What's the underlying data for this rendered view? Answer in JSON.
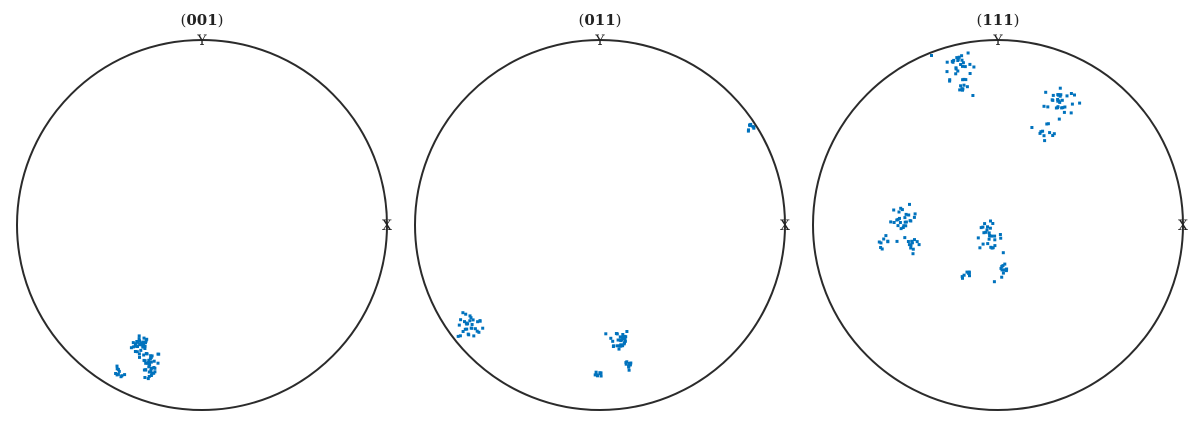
{
  "chart_data": [
    {
      "type": "scatter",
      "title_prefix": "(",
      "title_index": "001",
      "title_suffix": ")",
      "xlabel": "X",
      "ylabel": "Y",
      "marker_color": "#0072BD",
      "outline_color": "#2b2b2b",
      "xlim": [
        -1,
        1
      ],
      "ylim": [
        -1,
        1
      ],
      "series": [
        {
          "clusters": [
            {
              "x": -0.33,
              "y": -0.65,
              "n": 34,
              "spread": 0.025
            },
            {
              "x": -0.27,
              "y": -0.73,
              "n": 20,
              "spread": 0.022
            },
            {
              "x": -0.29,
              "y": -0.8,
              "n": 16,
              "spread": 0.02
            },
            {
              "x": -0.45,
              "y": -0.8,
              "n": 10,
              "spread": 0.015
            }
          ]
        }
      ]
    },
    {
      "type": "scatter",
      "title_prefix": "(",
      "title_index": "011",
      "title_suffix": ")",
      "xlabel": "X",
      "ylabel": "Y",
      "marker_color": "#0072BD",
      "outline_color": "#2b2b2b",
      "xlim": [
        -1,
        1
      ],
      "ylim": [
        -1,
        1
      ],
      "series": [
        {
          "clusters": [
            {
              "x": 0.81,
              "y": 0.53,
              "n": 8,
              "spread": 0.018
            },
            {
              "x": -0.7,
              "y": -0.55,
              "n": 30,
              "spread": 0.035
            },
            {
              "x": 0.1,
              "y": -0.62,
              "n": 30,
              "spread": 0.03
            },
            {
              "x": 0.16,
              "y": -0.76,
              "n": 10,
              "spread": 0.02
            },
            {
              "x": 0.0,
              "y": -0.8,
              "n": 8,
              "spread": 0.012
            }
          ]
        }
      ]
    },
    {
      "type": "scatter",
      "title_prefix": "(",
      "title_index": "111",
      "title_suffix": ")",
      "xlabel": "X",
      "ylabel": "Y",
      "marker_color": "#0072BD",
      "outline_color": "#2b2b2b",
      "xlim": [
        -1,
        1
      ],
      "ylim": [
        -1,
        1
      ],
      "series": [
        {
          "clusters": [
            {
              "x": -0.22,
              "y": 0.87,
              "n": 28,
              "spread": 0.04
            },
            {
              "x": -0.19,
              "y": 0.74,
              "n": 10,
              "spread": 0.02
            },
            {
              "x": 0.33,
              "y": 0.67,
              "n": 30,
              "spread": 0.04
            },
            {
              "x": 0.27,
              "y": 0.52,
              "n": 12,
              "spread": 0.03
            },
            {
              "x": -0.51,
              "y": 0.03,
              "n": 26,
              "spread": 0.035
            },
            {
              "x": -0.46,
              "y": -0.1,
              "n": 12,
              "spread": 0.025
            },
            {
              "x": -0.62,
              "y": -0.09,
              "n": 8,
              "spread": 0.015
            },
            {
              "x": -0.05,
              "y": -0.06,
              "n": 28,
              "spread": 0.035
            },
            {
              "x": 0.03,
              "y": -0.26,
              "n": 12,
              "spread": 0.025
            },
            {
              "x": -0.17,
              "y": -0.27,
              "n": 8,
              "spread": 0.015
            }
          ]
        }
      ]
    }
  ]
}
